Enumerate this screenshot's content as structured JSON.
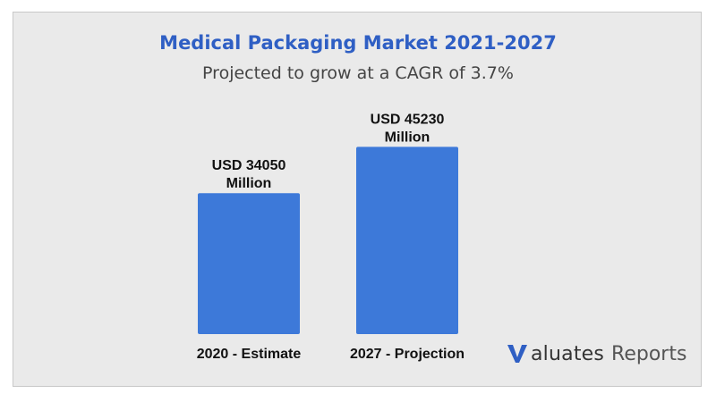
{
  "chart_data": {
    "type": "bar",
    "title": "Medical Packaging Market 2021-2027",
    "subtitle": "Projected to grow at a CAGR of 3.7%",
    "categories": [
      "2020 - Estimate",
      "2027 - Projection"
    ],
    "values": [
      34050,
      45230
    ],
    "value_labels": [
      [
        "USD 34050",
        "Million"
      ],
      [
        "USD 45230",
        "Million"
      ]
    ],
    "unit": "USD Million",
    "ylim": [
      0,
      52000
    ],
    "grid": false,
    "legend": "none",
    "colors": {
      "bar": "#3d79d9",
      "title": "#2f5fc4",
      "background": "#eaeaea"
    }
  },
  "brand": {
    "logo_text": "aluates",
    "logo_text_2": "Reports",
    "icon": "v-logo-icon"
  }
}
